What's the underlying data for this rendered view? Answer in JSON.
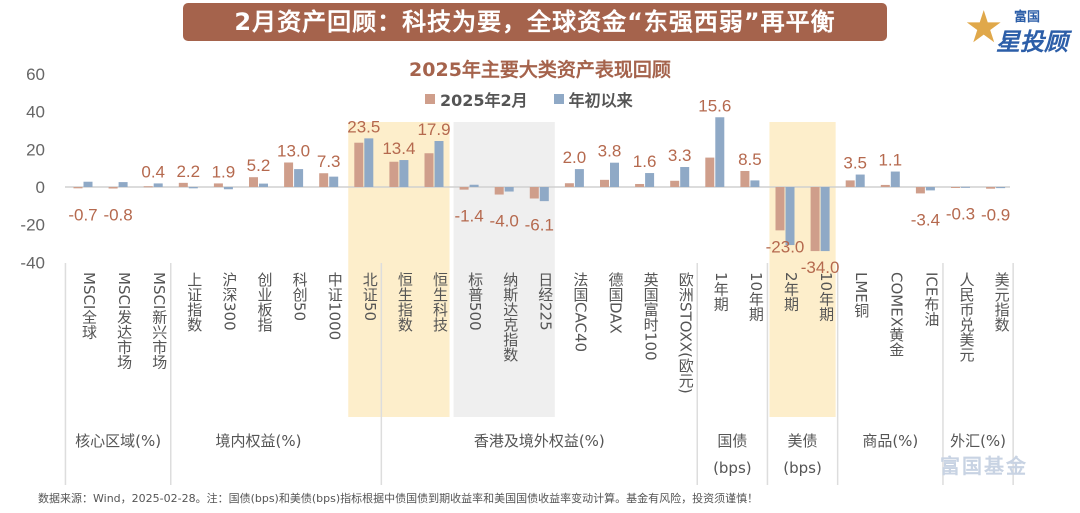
{
  "banner": {
    "title": "2月资产回顾：科技为要，全球资金“东强西弱”再平衡"
  },
  "logo": {
    "top": "富国",
    "main": "星投顾",
    "icon": "star-icon"
  },
  "watermark": {
    "text": "富国基金"
  },
  "footnote": "数据来源：Wind，2025-02-28。注：国债(bps)和美债(bps)指标根据中债国债到期收益率和美国国债收益率变动计算。基金有风险，投资须谨慎！",
  "colors": {
    "feb": "#cf9e8b",
    "ytd": "#8fa9c6",
    "title": "#a5634c",
    "highlight": "#fdeecb",
    "grey_band": "#efefef",
    "label": "#b5694e",
    "axis": "#666666"
  },
  "chart_data": {
    "type": "bar",
    "title": "2025年主要大类资产表现回顾",
    "legend": [
      "2025年2月",
      "年初以来"
    ],
    "legend_position": "top-center",
    "ylim": [
      -40,
      60
    ],
    "yticks": [
      60,
      40,
      20,
      0,
      -20,
      -40
    ],
    "grid": false,
    "categories": [
      "MSCI全球",
      "MSCI发达市场",
      "MSCI新兴市场",
      "上证指数",
      "沪深300",
      "创业板指",
      "科创50",
      "中证1000",
      "北证50",
      "恒生指数",
      "恒生科技",
      "标普500",
      "纳斯达克指数",
      "日经225",
      "法国CAC40",
      "德国DAX",
      "英国富时100",
      "欧洲STOXX(欧元)",
      "1年期",
      "10年期",
      "2年期",
      "10年期",
      "LME铜",
      "COMEX黄金",
      "ICE布油",
      "人民币兑美元",
      "美元指数"
    ],
    "series": [
      {
        "name": "2025年2月",
        "values": [
          -0.7,
          -0.8,
          0.4,
          2.2,
          1.9,
          5.2,
          13.0,
          7.3,
          23.5,
          13.4,
          17.9,
          -1.4,
          -4.0,
          -6.1,
          2.0,
          3.8,
          1.6,
          3.3,
          15.6,
          8.5,
          -23.0,
          -34.0,
          3.5,
          1.1,
          -3.4,
          -0.3,
          -0.9
        ]
      },
      {
        "name": "年初以来",
        "values": [
          2.8,
          2.6,
          1.9,
          -0.7,
          -1.2,
          1.8,
          9.5,
          5.5,
          25.8,
          14.3,
          24.4,
          1.2,
          -2.4,
          -7.5,
          9.5,
          12.9,
          7.4,
          10.6,
          37.0,
          3.5,
          -30.8,
          -34.0,
          6.6,
          8.2,
          -1.8,
          0.1,
          -0.6
        ]
      }
    ],
    "data_labels": [
      "-0.7",
      "-0.8",
      "0.4",
      "2.2",
      "1.9",
      "5.2",
      "13.0",
      "7.3",
      "23.5",
      "13.4",
      "17.9",
      "-1.4",
      "-4.0",
      "-6.1",
      "2.0",
      "3.8",
      "1.6",
      "3.3",
      "15.6",
      "8.5",
      "-23.0",
      "-34.0",
      "3.5",
      "1.1",
      "-3.4",
      "-0.3",
      "-0.9"
    ],
    "groups": [
      {
        "label": "核心区域(%)",
        "start": 0,
        "end": 2
      },
      {
        "label": "境内权益(%)",
        "start": 3,
        "end": 10
      },
      {
        "label": "香港及境外权益(%)",
        "start": 9,
        "end": 17
      },
      {
        "label": "国债\n(bps)",
        "start": 18,
        "end": 19
      },
      {
        "label": "美债\n(bps)",
        "start": 20,
        "end": 21
      },
      {
        "label": "商品(%)",
        "start": 22,
        "end": 24
      },
      {
        "label": "外汇(%)",
        "start": 25,
        "end": 26
      }
    ],
    "highlights": [
      {
        "start": 8,
        "end": 10,
        "style": "highlight"
      },
      {
        "start": 11,
        "end": 13,
        "style": "grey"
      },
      {
        "start": 20,
        "end": 21,
        "style": "highlight"
      }
    ]
  }
}
